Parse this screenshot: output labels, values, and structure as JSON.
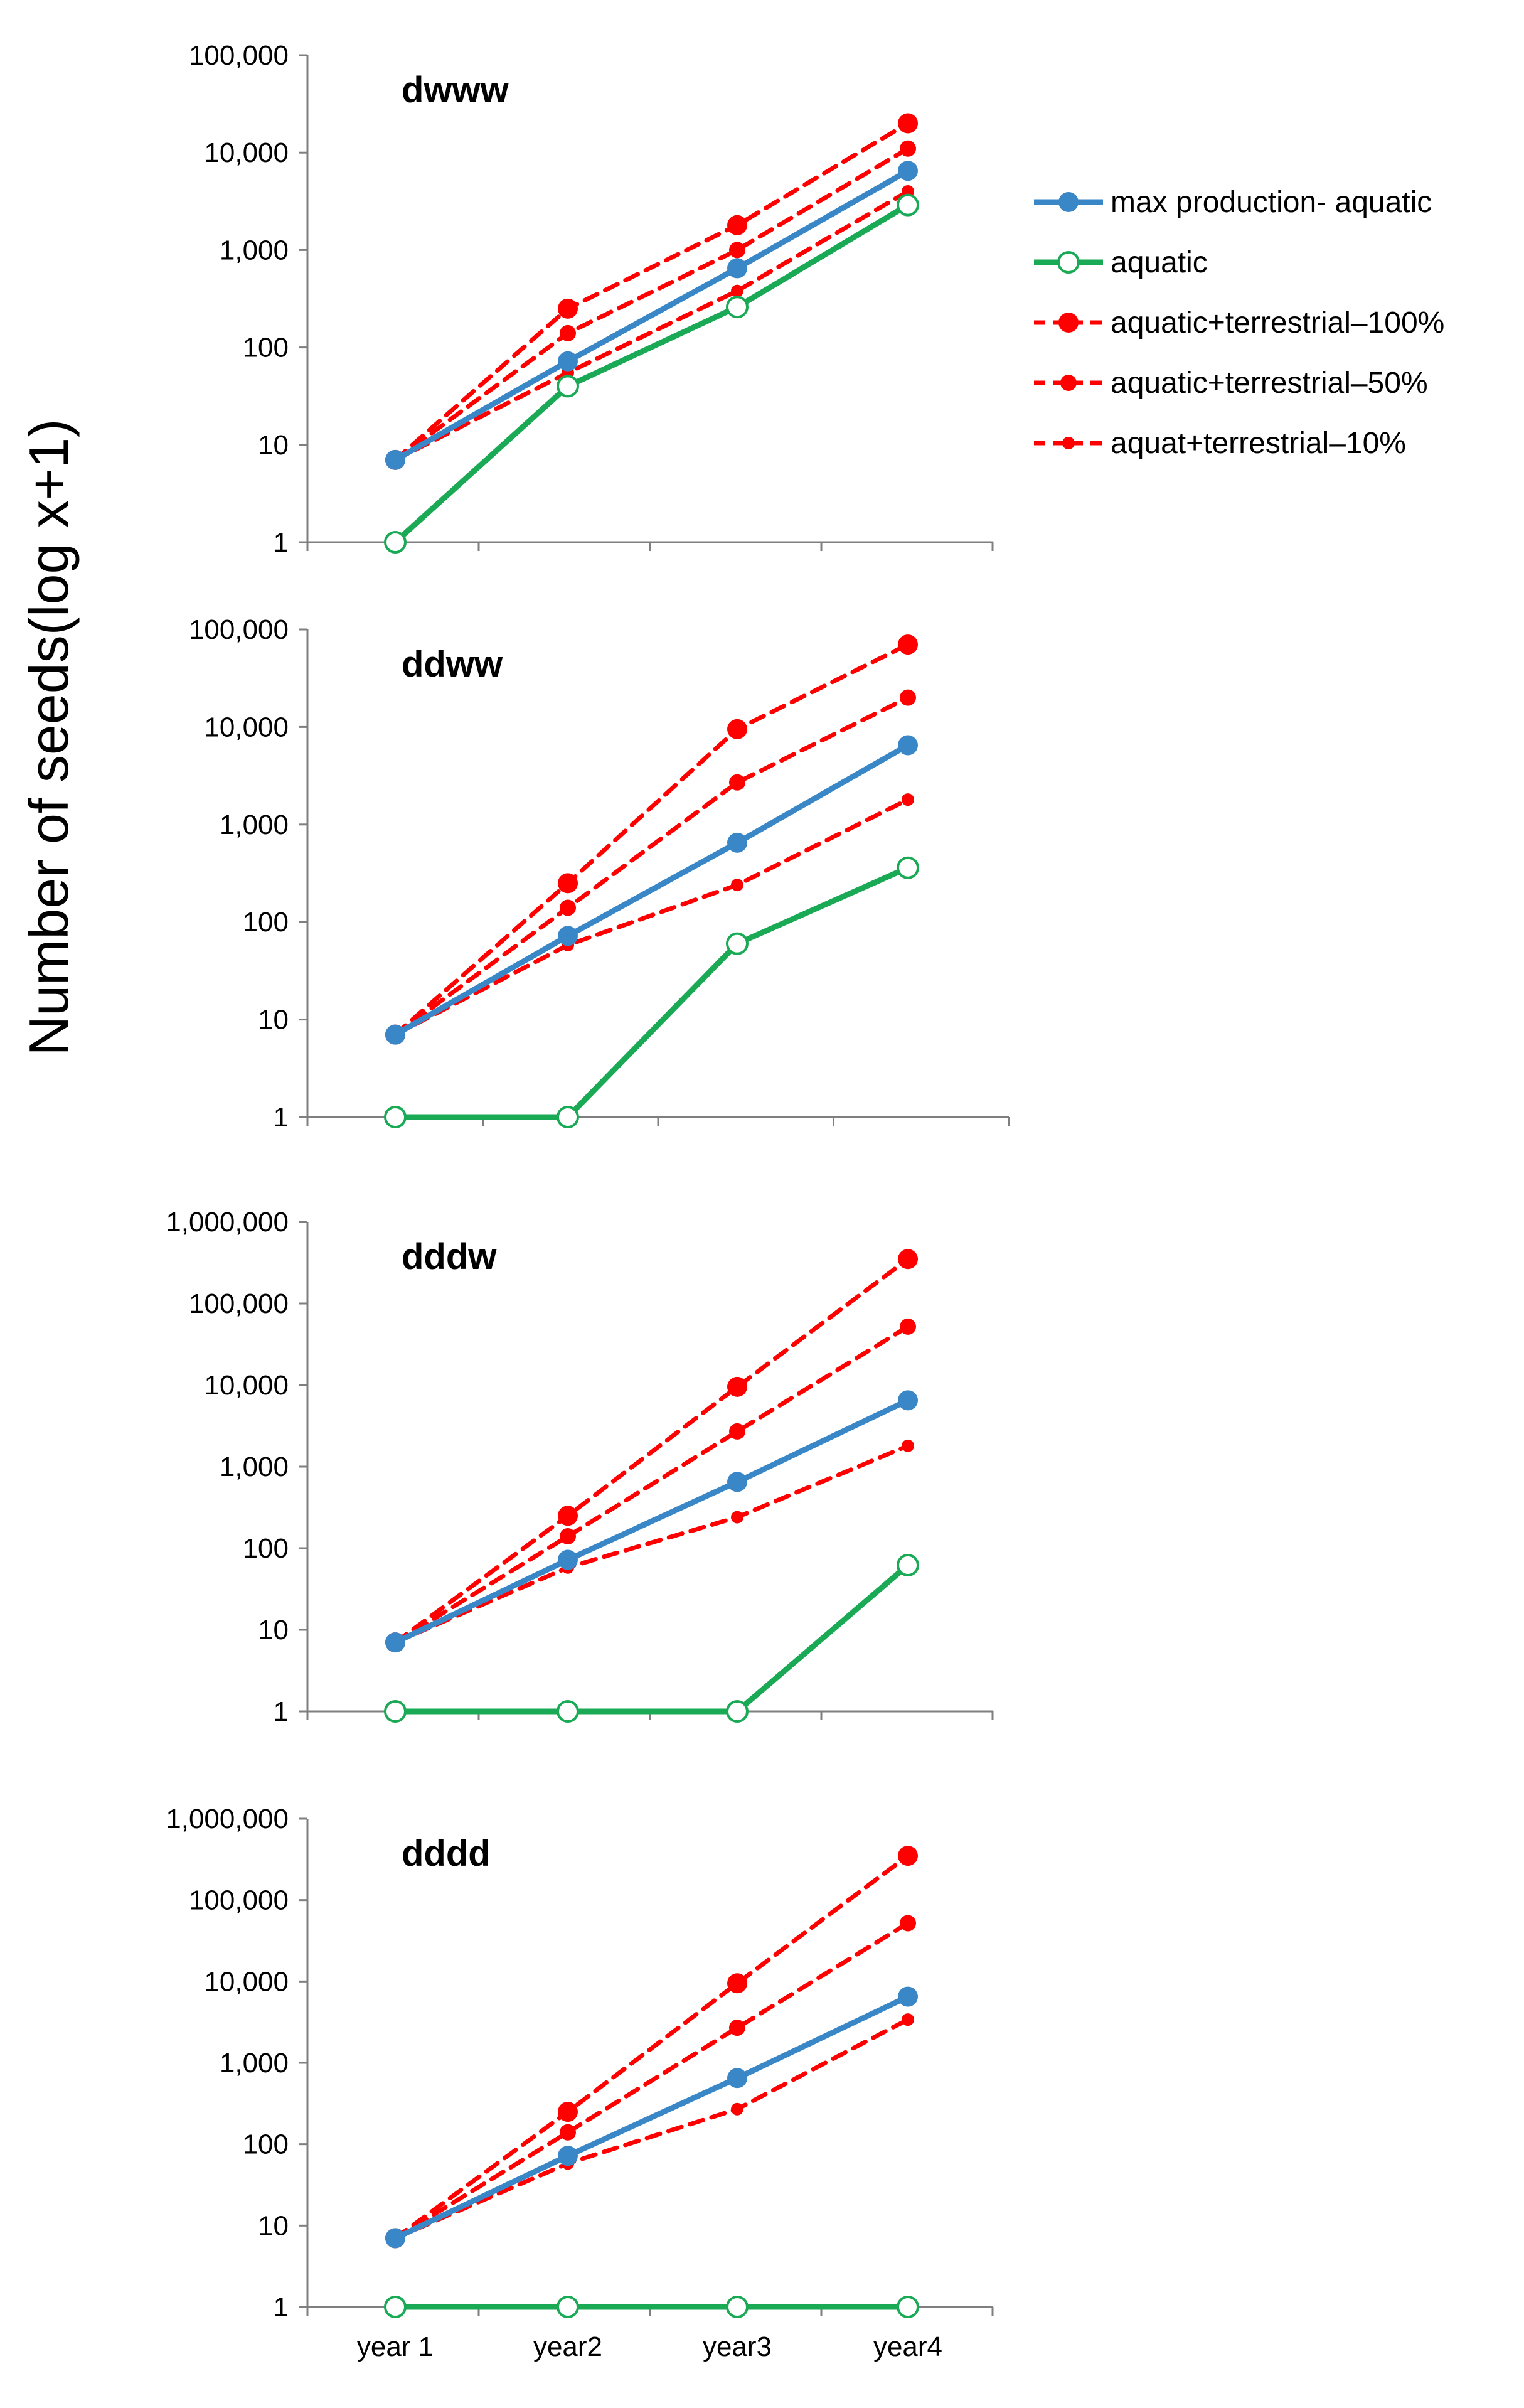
{
  "y_axis_title": "Number of seeds(log x+1)",
  "x_categories": [
    "year 1",
    "year2",
    "year3",
    "year4"
  ],
  "legend": [
    {
      "key": "max",
      "label": "max production- aquatic"
    },
    {
      "key": "aquatic",
      "label": "aquatic"
    },
    {
      "key": "t100",
      "label": "aquatic+terrestrial–100%"
    },
    {
      "key": "t50",
      "label": "aquatic+terrestrial–50%"
    },
    {
      "key": "t10",
      "label": "aquat+terrestrial–10%"
    }
  ],
  "series_styles": {
    "max": {
      "color": "#3a87c8",
      "dashed": false,
      "marker": "filled-large"
    },
    "aquatic": {
      "color": "#1aaa55",
      "dashed": false,
      "marker": "hollow"
    },
    "t100": {
      "color": "#ff0000",
      "dashed": true,
      "marker": "filled-large"
    },
    "t50": {
      "color": "#ff0000",
      "dashed": true,
      "marker": "filled-medium"
    },
    "t10": {
      "color": "#ff0000",
      "dashed": true,
      "marker": "filled-small"
    }
  },
  "chart_data": [
    {
      "type": "line",
      "title": "dwww",
      "yscale": "log",
      "ylim": [
        1,
        100000
      ],
      "yticks": [
        "1",
        "10",
        "100",
        "1,000",
        "10,000",
        "100,000"
      ],
      "categories": [
        "year 1",
        "year2",
        "year3",
        "year4"
      ],
      "show_x_labels": false,
      "series": [
        {
          "key": "t100",
          "name": "aquatic+terrestrial–100%",
          "values": [
            7,
            250,
            1800,
            20000
          ]
        },
        {
          "key": "t50",
          "name": "aquatic+terrestrial–50%",
          "values": [
            7,
            140,
            1000,
            11000
          ]
        },
        {
          "key": "t10",
          "name": "aquat+terrestrial–10%",
          "values": [
            7,
            55,
            380,
            4000
          ]
        },
        {
          "key": "max",
          "name": "max production- aquatic",
          "values": [
            7,
            72,
            650,
            6500
          ]
        },
        {
          "key": "aquatic",
          "name": "aquatic",
          "values": [
            1,
            40,
            260,
            2900
          ]
        }
      ]
    },
    {
      "type": "line",
      "title": "ddww",
      "yscale": "log",
      "ylim": [
        1,
        100000
      ],
      "yticks": [
        "1",
        "10",
        "100",
        "1,000",
        "10,000",
        "100,000"
      ],
      "categories": [
        "year 1",
        "year2",
        "year3",
        "year4"
      ],
      "show_x_labels": false,
      "series": [
        {
          "key": "t100",
          "name": "aquatic+terrestrial–100%",
          "values": [
            7,
            250,
            9500,
            70000
          ]
        },
        {
          "key": "t50",
          "name": "aquatic+terrestrial–50%",
          "values": [
            7,
            140,
            2700,
            20000
          ]
        },
        {
          "key": "t10",
          "name": "aquat+terrestrial–10%",
          "values": [
            7,
            58,
            240,
            1800
          ]
        },
        {
          "key": "max",
          "name": "max production- aquatic",
          "values": [
            7,
            72,
            650,
            6500
          ]
        },
        {
          "key": "aquatic",
          "name": "aquatic",
          "values": [
            1,
            1,
            60,
            360
          ]
        }
      ]
    },
    {
      "type": "line",
      "title": "dddw",
      "yscale": "log",
      "ylim": [
        1,
        1000000
      ],
      "yticks": [
        "1",
        "10",
        "100",
        "1,000",
        "10,000",
        "100,000",
        "1,000,000"
      ],
      "categories": [
        "year 1",
        "year2",
        "year3",
        "year4"
      ],
      "show_x_labels": false,
      "series": [
        {
          "key": "t100",
          "name": "aquatic+terrestrial–100%",
          "values": [
            7,
            250,
            9500,
            350000
          ]
        },
        {
          "key": "t50",
          "name": "aquatic+terrestrial–50%",
          "values": [
            7,
            140,
            2700,
            52000
          ]
        },
        {
          "key": "t10",
          "name": "aquat+terrestrial–10%",
          "values": [
            7,
            58,
            240,
            1800
          ]
        },
        {
          "key": "max",
          "name": "max production- aquatic",
          "values": [
            7,
            72,
            650,
            6500
          ]
        },
        {
          "key": "aquatic",
          "name": "aquatic",
          "values": [
            1,
            1,
            1,
            62
          ]
        }
      ]
    },
    {
      "type": "line",
      "title": "dddd",
      "yscale": "log",
      "ylim": [
        1,
        1000000
      ],
      "yticks": [
        "1",
        "10",
        "100",
        "1,000",
        "10,000",
        "100,000",
        "1,000,000"
      ],
      "categories": [
        "year 1",
        "year2",
        "year3",
        "year4"
      ],
      "show_x_labels": true,
      "series": [
        {
          "key": "t100",
          "name": "aquatic+terrestrial–100%",
          "values": [
            7,
            250,
            9500,
            350000
          ]
        },
        {
          "key": "t50",
          "name": "aquatic+terrestrial–50%",
          "values": [
            7,
            140,
            2700,
            52000
          ]
        },
        {
          "key": "t10",
          "name": "aquat+terrestrial–10%",
          "values": [
            7,
            58,
            270,
            3400
          ]
        },
        {
          "key": "max",
          "name": "max production- aquatic",
          "values": [
            7,
            72,
            650,
            6500
          ]
        },
        {
          "key": "aquatic",
          "name": "aquatic",
          "values": [
            1,
            1,
            1,
            1
          ]
        }
      ]
    }
  ]
}
